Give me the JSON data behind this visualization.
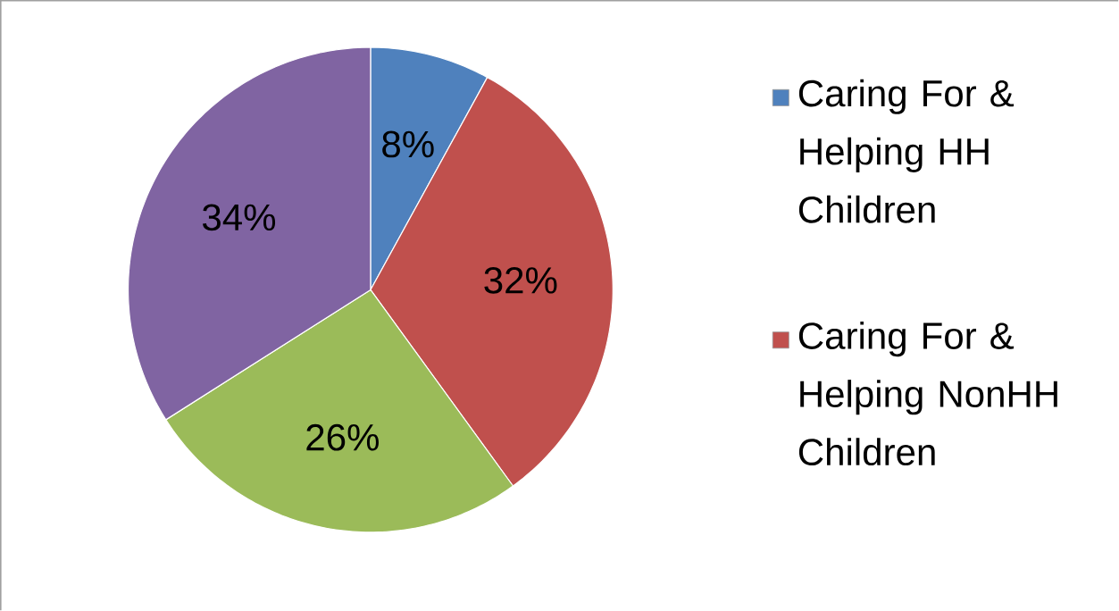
{
  "chart_data": {
    "type": "pie",
    "categories": [
      "Caring For & Helping HH Children",
      "Caring For & Helping NonHH Children",
      null,
      null
    ],
    "values": [
      8,
      32,
      26,
      34
    ],
    "value_labels": [
      "8%",
      "32%",
      "26%",
      "34%"
    ],
    "colors": [
      "#4f81bd",
      "#c0504d",
      "#9bbb59",
      "#8064a2"
    ],
    "legend": "right"
  }
}
